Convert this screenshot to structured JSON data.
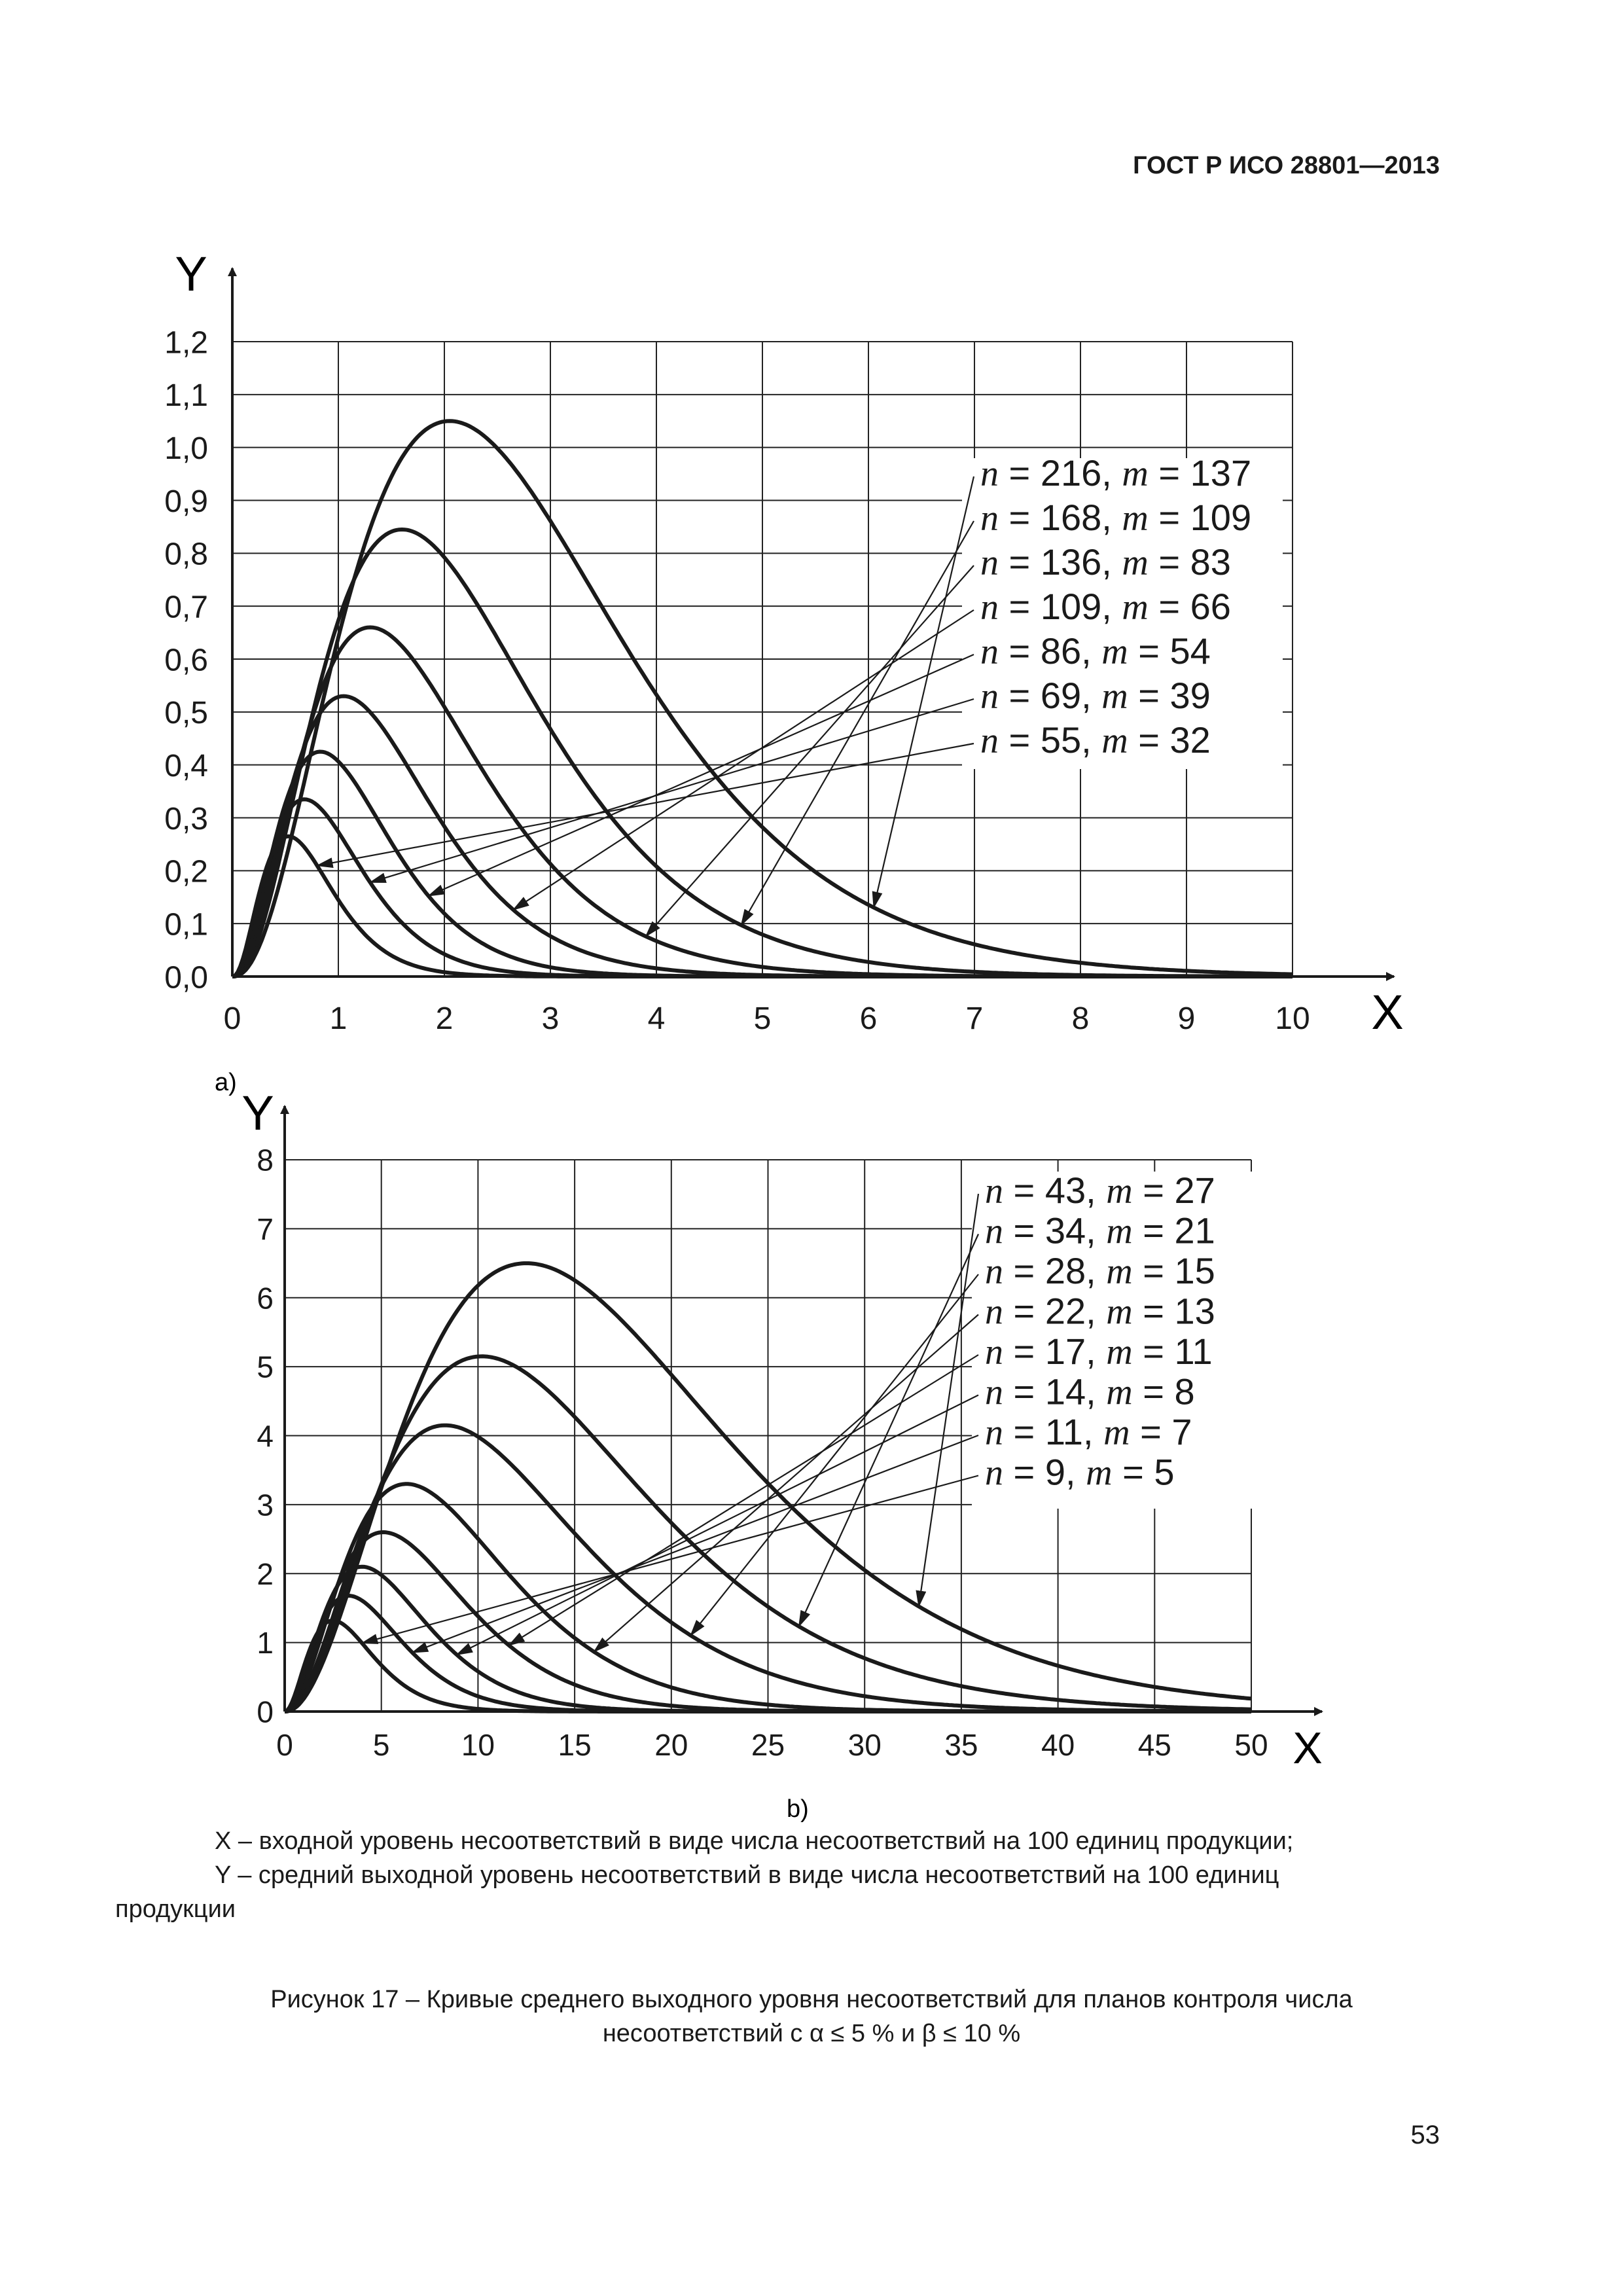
{
  "header": {
    "standard": "ГОСТ Р ИСО 28801—2013"
  },
  "chart_data": [
    {
      "type": "line",
      "label": "a)",
      "xlabel": "X",
      "ylabel": "Y",
      "xlim": [
        0,
        10
      ],
      "ylim": [
        0,
        1.2
      ],
      "grid": true,
      "x_ticks": [
        "0",
        "1",
        "2",
        "3",
        "4",
        "5",
        "6",
        "7",
        "8",
        "9",
        "10"
      ],
      "y_ticks": [
        "0,0",
        "0,1",
        "0,2",
        "0,3",
        "0,4",
        "0,5",
        "0,6",
        "0,7",
        "0,8",
        "0,9",
        "1,0",
        "1,1",
        "1,2"
      ],
      "series": [
        {
          "name": "n = 216, m = 137",
          "n": "216",
          "m": "137",
          "peak_x": 2.05,
          "peak_y": 1.05,
          "shape": 2.4,
          "arrow_x": 6.05
        },
        {
          "name": "n = 168, m = 109",
          "n": "168",
          "m": "109",
          "peak_x": 1.6,
          "peak_y": 0.845,
          "shape": 2.4,
          "arrow_x": 4.8
        },
        {
          "name": "n = 136, m = 83",
          "n": "136",
          "m": "83",
          "peak_x": 1.3,
          "peak_y": 0.66,
          "shape": 2.4,
          "arrow_x": 3.9
        },
        {
          "name": "n = 109, m = 66",
          "n": "109",
          "m": "66",
          "peak_x": 1.05,
          "peak_y": 0.53,
          "shape": 2.4,
          "arrow_x": 2.65
        },
        {
          "name": "n = 86, m = 54",
          "n": "86",
          "m": "54",
          "peak_x": 0.83,
          "peak_y": 0.425,
          "shape": 2.4,
          "arrow_x": 1.85
        },
        {
          "name": "n = 69, m = 39",
          "n": "69",
          "m": "39",
          "peak_x": 0.68,
          "peak_y": 0.335,
          "shape": 2.4,
          "arrow_x": 1.3
        },
        {
          "name": "n = 55, m = 32",
          "n": "55",
          "m": "32",
          "peak_x": 0.53,
          "peak_y": 0.265,
          "shape": 2.4,
          "arrow_x": 0.8
        }
      ]
    },
    {
      "type": "line",
      "label": "b)",
      "xlabel": "X",
      "ylabel": "Y",
      "xlim": [
        0,
        50
      ],
      "ylim": [
        0,
        8
      ],
      "grid": true,
      "x_ticks": [
        "0",
        "5",
        "10",
        "15",
        "20",
        "25",
        "30",
        "35",
        "40",
        "45",
        "50"
      ],
      "y_ticks": [
        "0",
        "1",
        "2",
        "3",
        "4",
        "5",
        "6",
        "7",
        "8"
      ],
      "series": [
        {
          "name": "n = 43, m = 27",
          "n": "43",
          "m": "27",
          "peak_x": 12.5,
          "peak_y": 6.5,
          "shape": 2.2,
          "arrow_x": 32.8
        },
        {
          "name": "n = 34, m = 21",
          "n": "34",
          "m": "21",
          "peak_x": 10.2,
          "peak_y": 5.15,
          "shape": 2.2,
          "arrow_x": 26.6
        },
        {
          "name": "n = 28, m = 15",
          "n": "28",
          "m": "15",
          "peak_x": 8.3,
          "peak_y": 4.15,
          "shape": 2.2,
          "arrow_x": 21.0
        },
        {
          "name": "n = 22, m = 13",
          "n": "22",
          "m": "13",
          "peak_x": 6.3,
          "peak_y": 3.3,
          "shape": 2.2,
          "arrow_x": 16.0
        },
        {
          "name": "n = 17, m = 11",
          "n": "17",
          "m": "11",
          "peak_x": 5.1,
          "peak_y": 2.6,
          "shape": 2.2,
          "arrow_x": 11.6
        },
        {
          "name": "n = 14, m = 8",
          "n": "14",
          "m": "8",
          "peak_x": 4.0,
          "peak_y": 2.1,
          "shape": 2.2,
          "arrow_x": 8.9
        },
        {
          "name": "n = 11, m = 7",
          "n": "11",
          "m": "7",
          "peak_x": 3.3,
          "peak_y": 1.68,
          "shape": 2.2,
          "arrow_x": 6.6
        },
        {
          "name": "n = 9, m = 5",
          "n": "9",
          "m": "5",
          "peak_x": 2.5,
          "peak_y": 1.32,
          "shape": 2.2,
          "arrow_x": 4.0
        }
      ]
    }
  ],
  "legend_tokens": {
    "n": "n",
    "m": "m",
    "eq": " = ",
    "sep": ", "
  },
  "caption": {
    "x_desc": "X – входной уровень несоответствий в виде числа несоответствий на 100 единиц продукции;",
    "y_desc_1": "Y – средний выходной уровень несоответствий в виде числа несоответствий на 100 единиц",
    "y_desc_2": "продукции",
    "figure_1": "Рисунок 17 – Кривые среднего выходного уровня несоответствий для планов контроля числа",
    "figure_2": "несоответствий с α ≤ 5 % и β ≤ 10 %"
  },
  "page_number": "53"
}
